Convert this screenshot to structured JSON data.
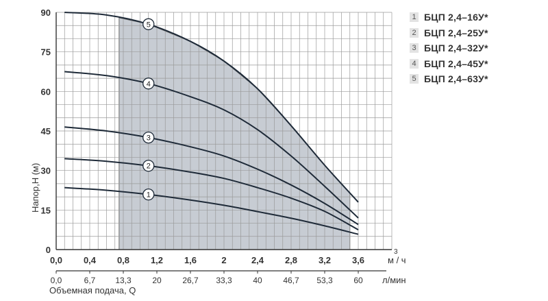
{
  "chart_data": {
    "type": "line",
    "ylabel": "Напор,H (м)",
    "xlabel": "Объемная подача, Q",
    "x_unit_primary": "м",
    "x_unit_primary_sup": "3",
    "x_unit_primary_den": "/ ч",
    "x_unit_secondary": "л/мин",
    "xlim": [
      0,
      4.0
    ],
    "ylim": [
      0,
      90
    ],
    "y_ticks": [
      0,
      15,
      30,
      45,
      60,
      75,
      90
    ],
    "x_ticks": [
      {
        "v": 0.0,
        "label": "0,0"
      },
      {
        "v": 0.4,
        "label": "0,4"
      },
      {
        "v": 0.8,
        "label": "0,8"
      },
      {
        "v": 1.2,
        "label": "1,2"
      },
      {
        "v": 1.6,
        "label": "1,6"
      },
      {
        "v": 2.0,
        "label": "2"
      },
      {
        "v": 2.4,
        "label": "2,4"
      },
      {
        "v": 2.8,
        "label": "2,8"
      },
      {
        "v": 3.2,
        "label": "3,2"
      },
      {
        "v": 3.6,
        "label": "3,6"
      }
    ],
    "x_ticks_secondary": [
      {
        "v": 0.0,
        "label": "0,0"
      },
      {
        "v": 0.4,
        "label": "6,7"
      },
      {
        "v": 0.8,
        "label": "13,3"
      },
      {
        "v": 1.2,
        "label": "20"
      },
      {
        "v": 1.6,
        "label": "26,7"
      },
      {
        "v": 2.0,
        "label": "33,3"
      },
      {
        "v": 2.4,
        "label": "40"
      },
      {
        "v": 2.8,
        "label": "46,7"
      },
      {
        "v": 3.2,
        "label": "53,3"
      },
      {
        "v": 3.6,
        "label": "60"
      }
    ],
    "grid": true,
    "shaded_range": [
      0.75,
      3.5
    ],
    "legend_position": "top-right",
    "series": [
      {
        "name": "БЦП 2,4–16У*",
        "marker": "1",
        "marker_x": 1.1,
        "x": [
          0.1,
          0.6,
          1.1,
          1.6,
          2.0,
          2.4,
          2.8,
          3.2,
          3.6
        ],
        "y": [
          23.5,
          22.5,
          20.9,
          18.8,
          16.8,
          14.4,
          11.9,
          9.0,
          5.8
        ]
      },
      {
        "name": "БЦП 2,4–25У*",
        "marker": "2",
        "marker_x": 1.1,
        "x": [
          0.1,
          0.6,
          1.1,
          1.6,
          2.0,
          2.4,
          2.8,
          3.2,
          3.6
        ],
        "y": [
          34.5,
          33.5,
          31.8,
          29.4,
          27.0,
          23.5,
          19.5,
          14.5,
          7.5
        ]
      },
      {
        "name": "БЦП 2,4–32У*",
        "marker": "3",
        "marker_x": 1.1,
        "x": [
          0.1,
          0.6,
          1.1,
          1.6,
          2.0,
          2.4,
          2.8,
          3.2,
          3.6
        ],
        "y": [
          46.5,
          45.0,
          42.5,
          39.0,
          35.5,
          30.5,
          24.5,
          17.5,
          9.5
        ]
      },
      {
        "name": "БЦП 2,4–45У*",
        "marker": "4",
        "marker_x": 1.1,
        "x": [
          0.1,
          0.6,
          1.1,
          1.6,
          2.0,
          2.4,
          2.8,
          3.2,
          3.6
        ],
        "y": [
          67.5,
          66.0,
          63.0,
          58.0,
          53.0,
          45.5,
          35.5,
          24.0,
          12.0
        ]
      },
      {
        "name": "БЦП 2,4–63У*",
        "marker": "5",
        "marker_x": 1.1,
        "x": [
          0.1,
          0.6,
          1.1,
          1.6,
          2.0,
          2.4,
          2.8,
          3.2,
          3.6
        ],
        "y": [
          90.0,
          89.0,
          85.5,
          79.0,
          71.5,
          61.0,
          47.0,
          32.0,
          18.0
        ]
      }
    ]
  },
  "legend": [
    {
      "num": "1",
      "label": "БЦП 2,4–16У*"
    },
    {
      "num": "2",
      "label": "БЦП 2,4–25У*"
    },
    {
      "num": "3",
      "label": "БЦП 2,4–32У*"
    },
    {
      "num": "4",
      "label": "БЦП 2,4–45У*"
    },
    {
      "num": "5",
      "label": "БЦП 2,4–63У*"
    }
  ],
  "colors": {
    "curve": "#1e2a38",
    "grid": "#9a9a9a",
    "shade": "#c7ccd3",
    "axis": "#333333"
  }
}
